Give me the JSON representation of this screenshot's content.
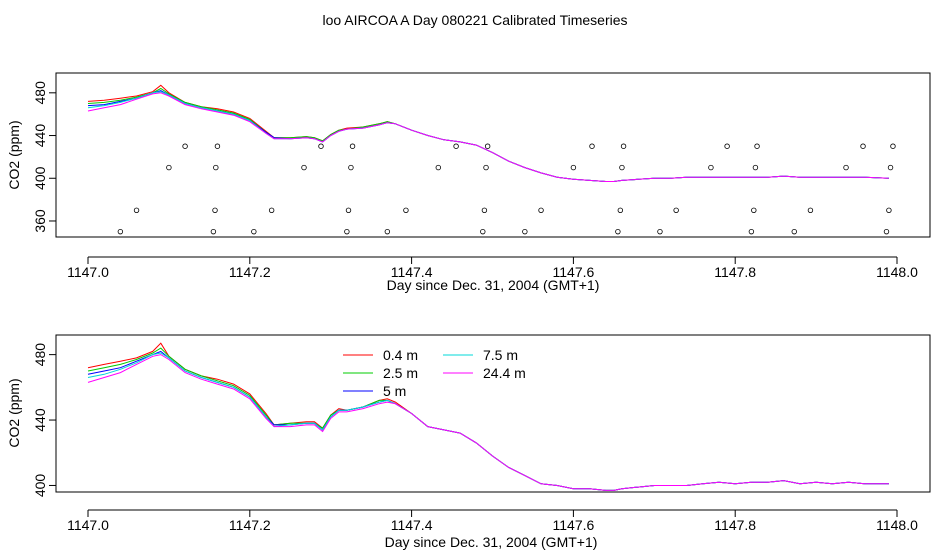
{
  "title": "loo AIRCOA A  Day 080221  Calibrated Timeseries",
  "colors": {
    "0.4 m": "#ff0000",
    "2.5 m": "#00cc00",
    "5 m": "#0000ff",
    "7.5 m": "#00d8d8",
    "24.4 m": "#ff00ff"
  },
  "chart_data": [
    {
      "type": "line",
      "xlabel": "Day since Dec. 31, 2004 (GMT+1)",
      "ylabel": "CO2 (ppm)",
      "xlim": [
        1147.0,
        1148.0
      ],
      "ylim": [
        345,
        492
      ],
      "xticks": [
        1147.0,
        1147.2,
        1147.4,
        1147.6,
        1147.8,
        1148.0
      ],
      "xtick_labels": [
        "1147.0",
        "1147.2",
        "1147.4",
        "1147.6",
        "1147.8",
        "1148.0"
      ],
      "yticks": [
        360,
        400,
        440,
        480
      ],
      "ytick_labels": [
        "360",
        "400",
        "440",
        "480"
      ],
      "grid": false,
      "x": [
        1147.0,
        1147.02,
        1147.04,
        1147.06,
        1147.08,
        1147.09,
        1147.1,
        1147.12,
        1147.14,
        1147.16,
        1147.18,
        1147.2,
        1147.22,
        1147.23,
        1147.25,
        1147.27,
        1147.28,
        1147.29,
        1147.3,
        1147.31,
        1147.32,
        1147.34,
        1147.36,
        1147.37,
        1147.38,
        1147.4,
        1147.42,
        1147.44,
        1147.46,
        1147.48,
        1147.5,
        1147.52,
        1147.54,
        1147.56,
        1147.58,
        1147.6,
        1147.62,
        1147.64,
        1147.65,
        1147.66,
        1147.68,
        1147.7,
        1147.72,
        1147.74,
        1147.76,
        1147.78,
        1147.8,
        1147.82,
        1147.84,
        1147.86,
        1147.88,
        1147.9,
        1147.92,
        1147.94,
        1147.96,
        1147.99
      ],
      "series": [
        {
          "name": "0.4 m",
          "values": [
            472,
            473,
            475,
            477,
            481,
            487,
            480,
            471,
            467,
            465,
            462,
            456,
            444,
            438,
            438,
            439,
            438,
            435,
            441,
            445,
            447,
            448,
            451,
            453,
            451,
            445,
            440,
            436,
            434,
            431,
            424,
            416,
            410,
            405,
            401,
            399,
            398,
            397,
            397,
            398,
            399,
            400,
            400,
            401,
            401,
            401,
            401,
            401,
            401,
            402,
            401,
            401,
            401,
            401,
            401,
            400
          ]
        },
        {
          "name": "2.5 m",
          "values": [
            470,
            471,
            473,
            476,
            480,
            484,
            479,
            471,
            467,
            464,
            461,
            455,
            443,
            438,
            438,
            439,
            438,
            435,
            441,
            445,
            446,
            448,
            451,
            453,
            451,
            445,
            440,
            436,
            434,
            431,
            424,
            416,
            410,
            405,
            401,
            399,
            398,
            397,
            397,
            398,
            399,
            400,
            400,
            401,
            401,
            401,
            401,
            401,
            401,
            402,
            401,
            401,
            401,
            401,
            401,
            400
          ]
        },
        {
          "name": "5 m",
          "values": [
            468,
            469,
            472,
            475,
            480,
            482,
            478,
            470,
            466,
            463,
            460,
            454,
            443,
            438,
            437,
            438,
            437,
            434,
            440,
            444,
            446,
            447,
            450,
            452,
            451,
            445,
            440,
            436,
            434,
            431,
            424,
            416,
            410,
            405,
            401,
            399,
            398,
            397,
            397,
            398,
            399,
            400,
            400,
            401,
            401,
            401,
            401,
            401,
            401,
            402,
            401,
            401,
            401,
            401,
            401,
            400
          ]
        },
        {
          "name": "7.5 m",
          "values": [
            466,
            468,
            471,
            475,
            480,
            481,
            478,
            470,
            466,
            463,
            460,
            454,
            442,
            437,
            437,
            438,
            437,
            434,
            440,
            444,
            446,
            447,
            450,
            452,
            451,
            445,
            440,
            436,
            434,
            431,
            424,
            416,
            410,
            405,
            401,
            399,
            398,
            397,
            397,
            398,
            399,
            400,
            400,
            401,
            401,
            401,
            401,
            401,
            401,
            402,
            401,
            401,
            401,
            401,
            401,
            400
          ]
        },
        {
          "name": "24.4 m",
          "values": [
            463,
            466,
            469,
            474,
            479,
            480,
            477,
            469,
            465,
            462,
            459,
            453,
            442,
            437,
            437,
            438,
            437,
            434,
            440,
            444,
            446,
            447,
            450,
            452,
            451,
            445,
            440,
            436,
            434,
            431,
            424,
            416,
            410,
            405,
            401,
            399,
            398,
            397,
            397,
            398,
            399,
            400,
            400,
            401,
            401,
            401,
            401,
            401,
            401,
            402,
            401,
            401,
            401,
            401,
            401,
            400
          ]
        }
      ],
      "points": {
        "x": [
          1147.04,
          1147.06,
          1147.1,
          1147.12,
          1147.155,
          1147.157,
          1147.158,
          1147.16,
          1147.205,
          1147.227,
          1147.267,
          1147.288,
          1147.32,
          1147.322,
          1147.325,
          1147.327,
          1147.37,
          1147.393,
          1147.433,
          1147.455,
          1147.488,
          1147.49,
          1147.492,
          1147.494,
          1147.54,
          1147.56,
          1147.6,
          1147.623,
          1147.655,
          1147.658,
          1147.66,
          1147.662,
          1147.707,
          1147.727,
          1147.77,
          1147.79,
          1147.82,
          1147.823,
          1147.825,
          1147.827,
          1147.873,
          1147.893,
          1147.937,
          1147.958,
          1147.987,
          1147.99,
          1147.992,
          1147.995
        ],
        "y": [
          350,
          370,
          410,
          430,
          350,
          370,
          410,
          430,
          350,
          370,
          410,
          430,
          350,
          370,
          410,
          430,
          350,
          370,
          410,
          430,
          350,
          370,
          410,
          430,
          350,
          370,
          410,
          430,
          350,
          370,
          410,
          430,
          350,
          370,
          410,
          430,
          350,
          370,
          410,
          430,
          350,
          370,
          410,
          430,
          350,
          370,
          410,
          430
        ]
      }
    },
    {
      "type": "line",
      "xlabel": "Day since Dec. 31, 2004 (GMT+1)",
      "ylabel": "CO2 (ppm)",
      "xlim": [
        1147.0,
        1148.0
      ],
      "ylim": [
        396,
        492
      ],
      "xticks": [
        1147.0,
        1147.2,
        1147.4,
        1147.6,
        1147.8,
        1148.0
      ],
      "xtick_labels": [
        "1147.0",
        "1147.2",
        "1147.4",
        "1147.6",
        "1147.8",
        "1148.0"
      ],
      "yticks": [
        400,
        440,
        480
      ],
      "ytick_labels": [
        "400",
        "440",
        "480"
      ],
      "grid": false,
      "legend_position": "top-center",
      "x": [
        1147.0,
        1147.02,
        1147.04,
        1147.06,
        1147.08,
        1147.09,
        1147.1,
        1147.12,
        1147.14,
        1147.16,
        1147.18,
        1147.2,
        1147.22,
        1147.23,
        1147.25,
        1147.27,
        1147.28,
        1147.29,
        1147.3,
        1147.31,
        1147.32,
        1147.34,
        1147.36,
        1147.37,
        1147.38,
        1147.4,
        1147.42,
        1147.44,
        1147.46,
        1147.48,
        1147.5,
        1147.52,
        1147.54,
        1147.56,
        1147.58,
        1147.6,
        1147.62,
        1147.64,
        1147.65,
        1147.66,
        1147.68,
        1147.7,
        1147.72,
        1147.74,
        1147.76,
        1147.78,
        1147.8,
        1147.82,
        1147.84,
        1147.86,
        1147.88,
        1147.9,
        1147.92,
        1147.94,
        1147.96,
        1147.99
      ],
      "series": [
        {
          "name": "0.4 m",
          "values": [
            472,
            474,
            476,
            478,
            482,
            487,
            479,
            471,
            467,
            465,
            462,
            456,
            444,
            437,
            438,
            439,
            439,
            435,
            443,
            447,
            446,
            448,
            452,
            453,
            451,
            444,
            436,
            434,
            432,
            426,
            418,
            411,
            406,
            401,
            400,
            398,
            398,
            397,
            397,
            398,
            399,
            400,
            400,
            400,
            401,
            402,
            401,
            402,
            402,
            403,
            401,
            402,
            401,
            402,
            401,
            401
          ]
        },
        {
          "name": "2.5 m",
          "values": [
            470,
            472,
            474,
            477,
            481,
            484,
            479,
            471,
            467,
            464,
            461,
            455,
            443,
            437,
            438,
            438,
            438,
            435,
            443,
            446,
            446,
            448,
            452,
            452,
            450,
            444,
            436,
            434,
            432,
            426,
            418,
            411,
            406,
            401,
            400,
            398,
            398,
            397,
            397,
            398,
            399,
            400,
            400,
            400,
            401,
            402,
            401,
            402,
            402,
            403,
            401,
            402,
            401,
            402,
            401,
            401
          ]
        },
        {
          "name": "5 m",
          "values": [
            468,
            470,
            472,
            476,
            480,
            482,
            478,
            470,
            466,
            463,
            460,
            454,
            442,
            437,
            437,
            438,
            438,
            434,
            442,
            446,
            446,
            448,
            451,
            452,
            450,
            444,
            436,
            434,
            432,
            426,
            418,
            411,
            406,
            401,
            400,
            398,
            398,
            397,
            397,
            398,
            399,
            400,
            400,
            400,
            401,
            402,
            401,
            402,
            402,
            403,
            401,
            402,
            401,
            402,
            401,
            401
          ]
        },
        {
          "name": "7.5 m",
          "values": [
            466,
            468,
            471,
            475,
            480,
            481,
            478,
            470,
            466,
            463,
            460,
            454,
            442,
            436,
            437,
            438,
            438,
            434,
            442,
            446,
            446,
            448,
            451,
            452,
            450,
            444,
            436,
            434,
            432,
            426,
            418,
            411,
            406,
            401,
            400,
            398,
            398,
            397,
            397,
            398,
            399,
            400,
            400,
            400,
            401,
            402,
            401,
            402,
            402,
            403,
            401,
            402,
            401,
            402,
            401,
            401
          ]
        },
        {
          "name": "24.4 m",
          "values": [
            463,
            466,
            469,
            474,
            479,
            480,
            477,
            469,
            465,
            462,
            459,
            453,
            441,
            436,
            436,
            437,
            437,
            433,
            441,
            445,
            445,
            447,
            450,
            451,
            450,
            444,
            436,
            434,
            432,
            426,
            418,
            411,
            406,
            401,
            400,
            398,
            398,
            397,
            397,
            398,
            399,
            400,
            400,
            400,
            401,
            402,
            401,
            402,
            402,
            403,
            401,
            402,
            401,
            402,
            401,
            401
          ]
        }
      ],
      "legend": [
        "0.4 m",
        "2.5 m",
        "5 m",
        "7.5 m",
        "24.4 m"
      ]
    }
  ]
}
